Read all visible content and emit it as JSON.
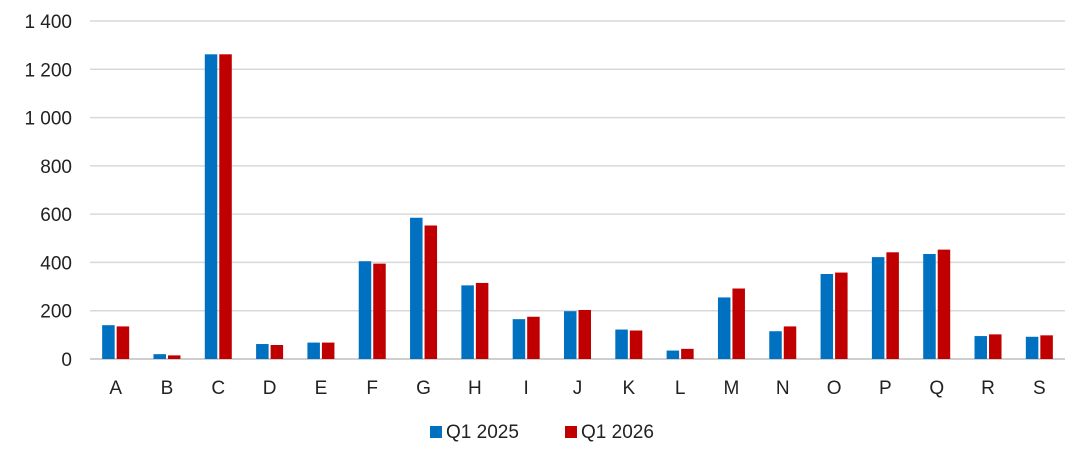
{
  "chart_data": {
    "type": "bar",
    "categories": [
      "A",
      "B",
      "C",
      "D",
      "E",
      "F",
      "G",
      "H",
      "I",
      "J",
      "K",
      "L",
      "M",
      "N",
      "O",
      "P",
      "Q",
      "R",
      "S"
    ],
    "series": [
      {
        "name": "Q1 2025",
        "color": "#0070C0",
        "values": [
          140,
          20,
          1262,
          62,
          68,
          405,
          585,
          305,
          165,
          198,
          122,
          35,
          255,
          115,
          352,
          422,
          435,
          95,
          92
        ]
      },
      {
        "name": "Q1 2026",
        "color": "#C00000",
        "values": [
          135,
          15,
          1262,
          58,
          68,
          395,
          553,
          315,
          175,
          203,
          118,
          42,
          292,
          135,
          358,
          442,
          453,
          102,
          98
        ]
      }
    ],
    "yticks": [
      "0",
      "200",
      "400",
      "600",
      "800",
      "1 000",
      "1 200",
      "1 400"
    ],
    "ylim": [
      0,
      1400
    ],
    "grid": true,
    "legend": "bottom-center"
  }
}
